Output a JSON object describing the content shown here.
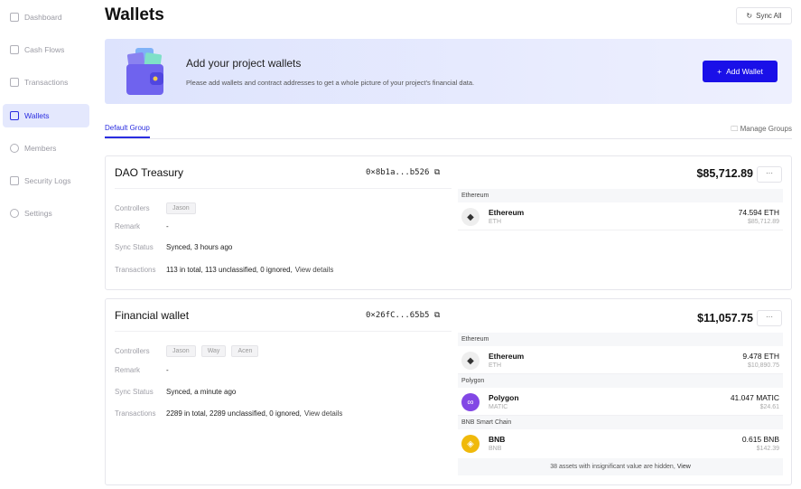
{
  "sidebar": {
    "items": [
      {
        "label": "Dashboard",
        "icon": "dashboard-icon"
      },
      {
        "label": "Cash Flows",
        "icon": "chart-icon"
      },
      {
        "label": "Transactions",
        "icon": "document-icon"
      },
      {
        "label": "Wallets",
        "icon": "wallet-icon",
        "active": true
      },
      {
        "label": "Members",
        "icon": "user-icon"
      },
      {
        "label": "Security Logs",
        "icon": "clipboard-icon"
      },
      {
        "label": "Settings",
        "icon": "gear-icon"
      }
    ]
  },
  "header": {
    "title": "Wallets",
    "sync_label": "Sync All"
  },
  "banner": {
    "title": "Add your project wallets",
    "subtitle": "Please add wallets and contract addresses to get a whole picture of your project's financial data.",
    "button": "Add Wallet"
  },
  "tabs": {
    "active": "Default Group",
    "manage": "Manage Groups"
  },
  "labels": {
    "controllers": "Controllers",
    "remark": "Remark",
    "sync": "Sync Status",
    "transactions": "Transactions",
    "view_details": "View details",
    "more": "···"
  },
  "accent": "#1a10e8",
  "wallets": [
    {
      "name": "DAO Treasury",
      "address": "0×8b1a...b526",
      "controllers": [
        "Jason"
      ],
      "remark": "-",
      "sync": "Synced, 3 hours ago",
      "transactions": "113 in total, 113 unclassified, 0 ignored,",
      "total": "$85,712.89",
      "chains": [
        {
          "chain": "Ethereum",
          "name": "Ethereum",
          "symbol": "ETH",
          "qty": "74.594 ETH",
          "usd": "$85,712.89"
        }
      ]
    },
    {
      "name": "Financial wallet",
      "address": "0×26fC...65b5",
      "controllers": [
        "Jason",
        "Way",
        "Acen"
      ],
      "remark": "-",
      "sync": "Synced, a minute ago",
      "transactions": "2289 in total, 2289 unclassified, 0 ignored,",
      "total": "$11,057.75",
      "chains": [
        {
          "chain": "Ethereum",
          "name": "Ethereum",
          "symbol": "ETH",
          "qty": "9.478 ETH",
          "usd": "$10,890.75"
        },
        {
          "chain": "Polygon",
          "name": "Polygon",
          "symbol": "MATIC",
          "qty": "41.047 MATIC",
          "usd": "$24.61"
        },
        {
          "chain": "BNB Smart Chain",
          "name": "BNB",
          "symbol": "BNB",
          "qty": "0.615 BNB",
          "usd": "$142.39"
        }
      ],
      "hidden_note": "38 assets with insignificant value are hidden,",
      "hidden_link": "View"
    }
  ]
}
